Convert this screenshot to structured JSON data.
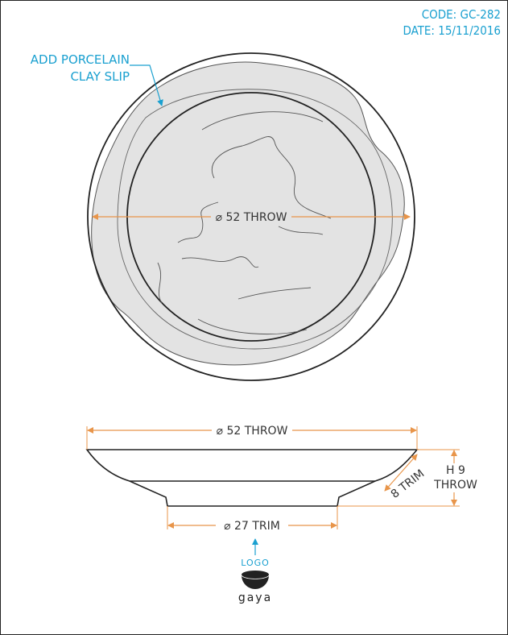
{
  "header": {
    "code": "CODE: GC-282",
    "date": "DATE: 15/11/2016"
  },
  "notes": {
    "slip_line1": "ADD PORCELAIN",
    "slip_line2": "CLAY SLIP"
  },
  "top_view": {
    "diameter_label": "⌀ 52 THROW"
  },
  "side_view": {
    "top_diameter_label": "⌀ 52 THROW",
    "height_label_line1": "H 9",
    "height_label_line2": "THROW",
    "trim_label": "8 TRIM",
    "base_diameter_label": "⌀ 27 TRIM"
  },
  "logo": {
    "label": "LOGO",
    "brand": "gaya",
    "icon": "bowl-logo-icon"
  },
  "colors": {
    "annotation": "#1aa0d0",
    "dimension": "#e8954a",
    "slip_fill": "#e3e3e3",
    "outline": "#222222"
  }
}
